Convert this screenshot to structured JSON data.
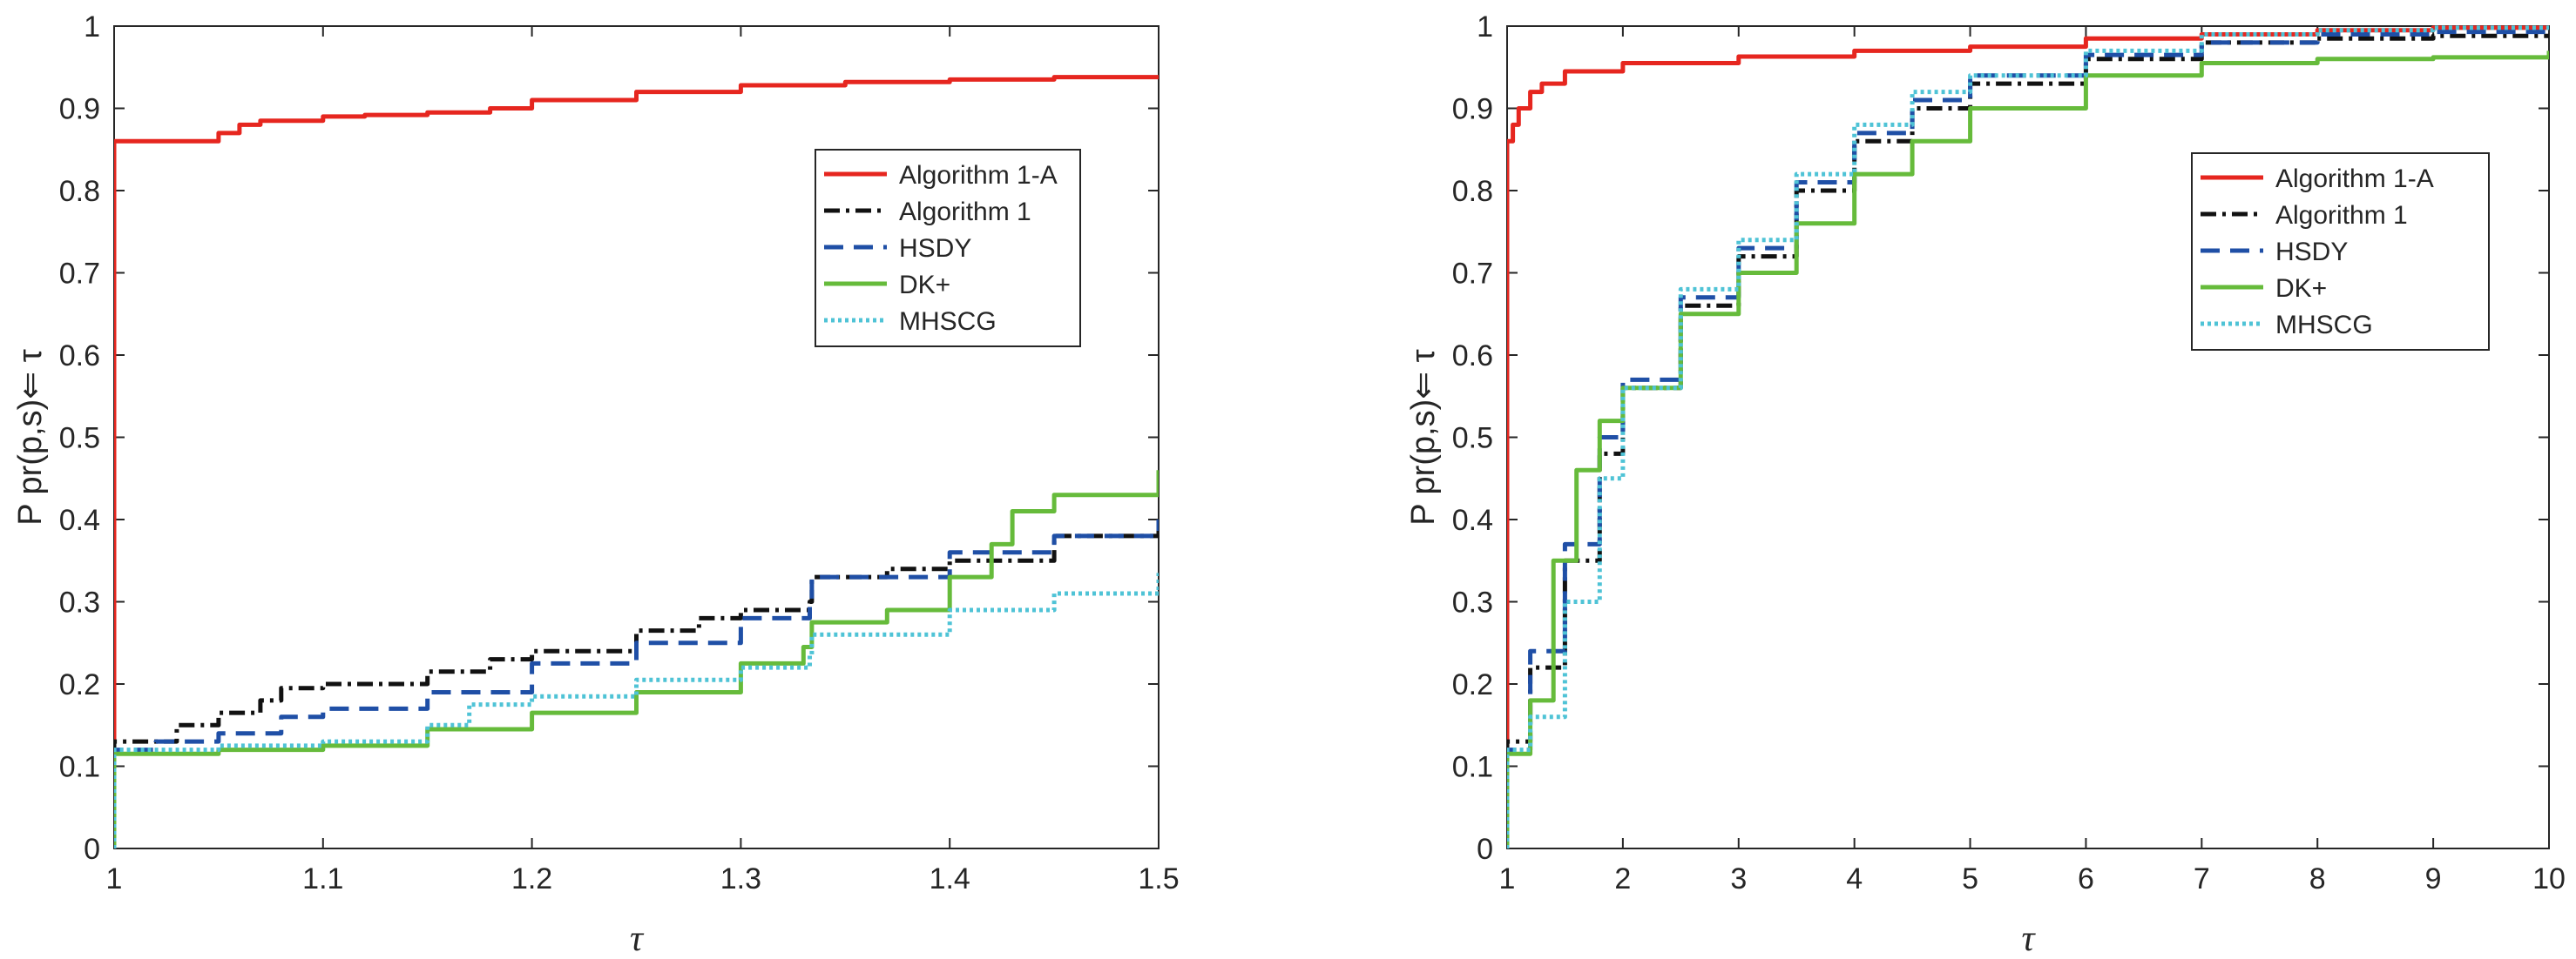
{
  "chart_data": [
    {
      "type": "line",
      "title": "",
      "xlabel": "τ",
      "ylabel": "P pr(p,s)⇐ τ",
      "xlim": [
        1,
        1.5
      ],
      "ylim": [
        0,
        1
      ],
      "xticks": [
        "1",
        "1.1",
        "1.2",
        "1.3",
        "1.4",
        "1.5"
      ],
      "yticks": [
        "0",
        "0.1",
        "0.2",
        "0.3",
        "0.4",
        "0.5",
        "0.6",
        "0.7",
        "0.8",
        "0.9",
        "1"
      ],
      "legend_position": "top-right",
      "series": [
        {
          "name": "Algorithm 1-A",
          "color": "#e6261f",
          "style": "solid",
          "x": [
            1,
            1.03,
            1.05,
            1.06,
            1.07,
            1.1,
            1.12,
            1.15,
            1.18,
            1.2,
            1.25,
            1.3,
            1.35,
            1.4,
            1.45,
            1.5
          ],
          "y": [
            0.86,
            0.86,
            0.87,
            0.88,
            0.885,
            0.89,
            0.892,
            0.895,
            0.9,
            0.91,
            0.92,
            0.928,
            0.932,
            0.935,
            0.938,
            0.94
          ]
        },
        {
          "name": "Algorithm 1",
          "color": "#111111",
          "style": "dashdot",
          "x": [
            1,
            1.01,
            1.03,
            1.05,
            1.07,
            1.08,
            1.1,
            1.12,
            1.15,
            1.18,
            1.2,
            1.25,
            1.28,
            1.3,
            1.333,
            1.334,
            1.37,
            1.4,
            1.45,
            1.5
          ],
          "y": [
            0.13,
            0.13,
            0.15,
            0.165,
            0.18,
            0.195,
            0.2,
            0.2,
            0.215,
            0.23,
            0.24,
            0.265,
            0.28,
            0.29,
            0.3,
            0.33,
            0.34,
            0.35,
            0.38,
            0.4
          ]
        },
        {
          "name": "HSDY",
          "color": "#1f4fa6",
          "style": "dashed",
          "x": [
            1,
            1.02,
            1.05,
            1.08,
            1.1,
            1.15,
            1.2,
            1.25,
            1.3,
            1.333,
            1.334,
            1.4,
            1.45,
            1.5
          ],
          "y": [
            0.12,
            0.13,
            0.14,
            0.16,
            0.17,
            0.19,
            0.225,
            0.25,
            0.28,
            0.3,
            0.33,
            0.36,
            0.38,
            0.4
          ]
        },
        {
          "name": "DK+",
          "color": "#66bb3b",
          "style": "solid",
          "x": [
            1,
            1.05,
            1.1,
            1.15,
            1.2,
            1.25,
            1.3,
            1.33,
            1.334,
            1.37,
            1.4,
            1.42,
            1.43,
            1.45,
            1.5
          ],
          "y": [
            0.115,
            0.12,
            0.125,
            0.145,
            0.165,
            0.19,
            0.225,
            0.245,
            0.275,
            0.29,
            0.33,
            0.37,
            0.41,
            0.43,
            0.46
          ]
        },
        {
          "name": "MHSCG",
          "color": "#4fc3d6",
          "style": "dotted",
          "x": [
            1,
            1.05,
            1.1,
            1.15,
            1.17,
            1.2,
            1.25,
            1.3,
            1.333,
            1.334,
            1.4,
            1.45,
            1.5
          ],
          "y": [
            0.12,
            0.125,
            0.13,
            0.15,
            0.175,
            0.185,
            0.205,
            0.22,
            0.235,
            0.26,
            0.29,
            0.31,
            0.335
          ]
        }
      ]
    },
    {
      "type": "line",
      "title": "",
      "xlabel": "τ",
      "ylabel": "P pr(p,s)⇐ τ",
      "xlim": [
        1,
        10
      ],
      "ylim": [
        0,
        1
      ],
      "xticks": [
        "1",
        "2",
        "3",
        "4",
        "5",
        "6",
        "7",
        "8",
        "9",
        "10"
      ],
      "yticks": [
        "0",
        "0.1",
        "0.2",
        "0.3",
        "0.4",
        "0.5",
        "0.6",
        "0.7",
        "0.8",
        "0.9",
        "1"
      ],
      "legend_position": "top-right",
      "series": [
        {
          "name": "Algorithm 1-A",
          "color": "#e6261f",
          "style": "solid",
          "x": [
            1,
            1.05,
            1.1,
            1.2,
            1.3,
            1.5,
            2,
            3,
            4,
            5,
            6,
            7,
            8,
            9,
            10
          ],
          "y": [
            0.86,
            0.88,
            0.9,
            0.92,
            0.93,
            0.945,
            0.955,
            0.963,
            0.97,
            0.975,
            0.985,
            0.99,
            0.995,
            0.998,
            1.0
          ]
        },
        {
          "name": "Algorithm 1",
          "color": "#111111",
          "style": "dashdot",
          "x": [
            1,
            1.2,
            1.5,
            1.8,
            2,
            2.5,
            3,
            3.5,
            4,
            4.5,
            5,
            6,
            7,
            8,
            9,
            10
          ],
          "y": [
            0.13,
            0.22,
            0.35,
            0.48,
            0.56,
            0.66,
            0.72,
            0.8,
            0.86,
            0.9,
            0.93,
            0.96,
            0.98,
            0.985,
            0.988,
            0.99
          ]
        },
        {
          "name": "HSDY",
          "color": "#1f4fa6",
          "style": "dashed",
          "x": [
            1,
            1.2,
            1.5,
            1.8,
            2,
            2.5,
            3,
            3.5,
            4,
            4.5,
            5,
            6,
            7,
            8,
            9,
            10
          ],
          "y": [
            0.12,
            0.24,
            0.37,
            0.5,
            0.57,
            0.67,
            0.73,
            0.81,
            0.87,
            0.91,
            0.94,
            0.965,
            0.98,
            0.99,
            0.993,
            0.995
          ]
        },
        {
          "name": "DK+",
          "color": "#66bb3b",
          "style": "solid",
          "x": [
            1,
            1.2,
            1.4,
            1.6,
            1.8,
            2,
            2.5,
            3,
            3.5,
            4,
            4.5,
            5,
            6,
            7,
            8,
            9,
            10
          ],
          "y": [
            0.115,
            0.18,
            0.35,
            0.46,
            0.52,
            0.56,
            0.65,
            0.7,
            0.76,
            0.82,
            0.86,
            0.9,
            0.94,
            0.955,
            0.96,
            0.962,
            0.97
          ]
        },
        {
          "name": "MHSCG",
          "color": "#4fc3d6",
          "style": "dotted",
          "x": [
            1,
            1.2,
            1.5,
            1.8,
            2,
            2.5,
            3,
            3.5,
            4,
            4.5,
            5,
            6,
            7,
            8,
            9,
            10
          ],
          "y": [
            0.12,
            0.16,
            0.3,
            0.45,
            0.56,
            0.68,
            0.74,
            0.82,
            0.88,
            0.92,
            0.94,
            0.97,
            0.99,
            0.995,
            0.998,
            1.0
          ]
        }
      ]
    }
  ]
}
